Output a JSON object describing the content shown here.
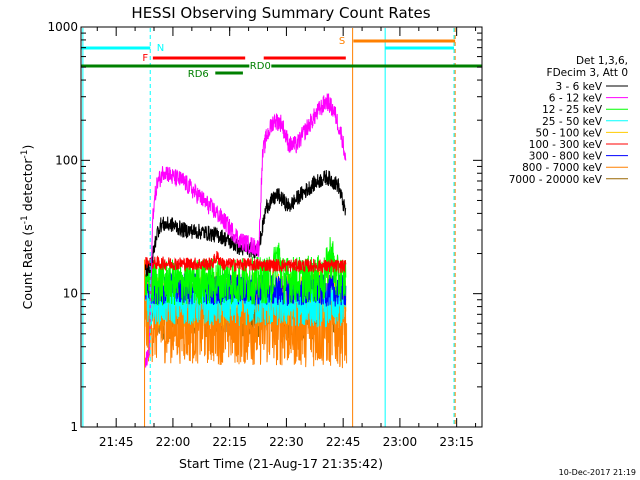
{
  "chart_data": {
    "type": "line",
    "title": "HESSI Observing Summary Count Rates",
    "xlabel": "Start Time (21-Aug-17 21:35:42)",
    "ylabel_main": "Count Rate (s",
    "ylabel_sup1": "-1",
    "ylabel_mid": " detector",
    "ylabel_sup2": "-1",
    "ylabel_end": ")",
    "y_scale": "log",
    "ylim": [
      1,
      1000
    ],
    "xlim_minutes": [
      0,
      106
    ],
    "x_ticks": [
      {
        "label": "21:45",
        "minute": 9.3
      },
      {
        "label": "22:00",
        "minute": 24.3
      },
      {
        "label": "22:15",
        "minute": 39.3
      },
      {
        "label": "22:30",
        "minute": 54.3
      },
      {
        "label": "22:45",
        "minute": 69.3
      },
      {
        "label": "23:00",
        "minute": 84.3
      },
      {
        "label": "23:15",
        "minute": 99.3
      }
    ],
    "y_ticks": [
      {
        "label": "1",
        "value": 1
      },
      {
        "label": "10",
        "value": 10
      },
      {
        "label": "100",
        "value": 100
      },
      {
        "label": "1000",
        "value": 1000
      }
    ],
    "legend_header": [
      "Det 1,3,6,",
      "FDecim 3, Att 0"
    ],
    "series": [
      {
        "name": "3 - 6 keV",
        "color": "#000000"
      },
      {
        "name": "6 - 12 keV",
        "color": "#ff00ff"
      },
      {
        "name": "12 - 25 keV",
        "color": "#00ff00"
      },
      {
        "name": "25 - 50 keV",
        "color": "#00ffff"
      },
      {
        "name": "50 - 100 keV",
        "color": "#ffcc00"
      },
      {
        "name": "100 - 300 keV",
        "color": "#ff0000"
      },
      {
        "name": "300 - 800 keV",
        "color": "#0000ff"
      },
      {
        "name": "800 - 7000 keV",
        "color": "#ff8000"
      },
      {
        "name": "7000 - 20000 keV",
        "color": "#996600"
      }
    ],
    "flags": [
      {
        "label": "N",
        "color": "#00ffff"
      },
      {
        "label": "F",
        "color": "#ff0000"
      },
      {
        "label": "RD0",
        "color": "#008000"
      },
      {
        "label": "RD6",
        "color": "#008000"
      },
      {
        "label": "S",
        "color": "#ff8000"
      }
    ],
    "timestamp": "10-Dec-2017 21:19"
  }
}
